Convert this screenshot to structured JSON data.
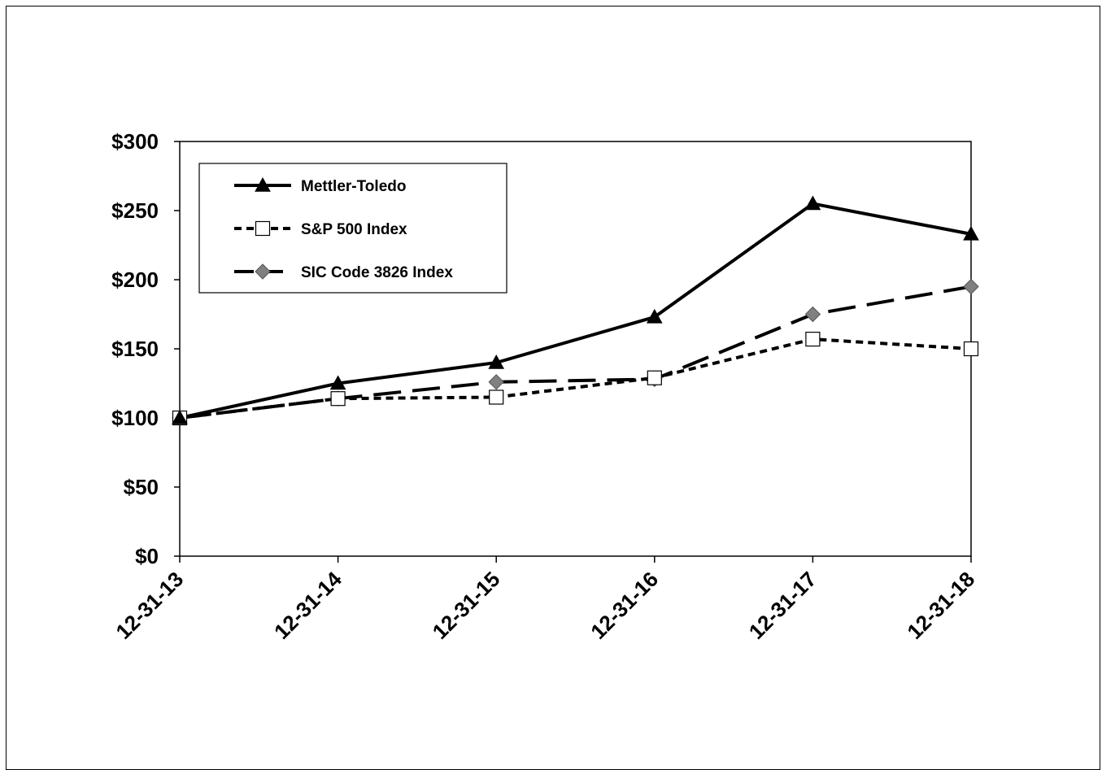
{
  "chart_data": {
    "type": "line",
    "title": "",
    "xlabel": "",
    "ylabel": "",
    "categories": [
      "12-31-13",
      "12-31-14",
      "12-31-15",
      "12-31-16",
      "12-31-17",
      "12-31-18"
    ],
    "ylim": [
      0,
      300
    ],
    "yticks": [
      0,
      50,
      100,
      150,
      200,
      250,
      300
    ],
    "ytick_labels": [
      "$0",
      "$50",
      "$100",
      "$150",
      "$200",
      "$250",
      "$300"
    ],
    "grid": false,
    "legend_position": "top-left",
    "series": [
      {
        "name": "Mettler-Toledo",
        "values": [
          100,
          125,
          140,
          173,
          255,
          233
        ],
        "marker": "triangle",
        "line_style": "solid",
        "color": "#000000",
        "marker_color": "#000000"
      },
      {
        "name": "S&P 500 Index",
        "values": [
          100,
          114,
          115,
          129,
          157,
          150
        ],
        "marker": "square-open",
        "line_style": "dotted",
        "color": "#000000",
        "marker_color": "#ffffff"
      },
      {
        "name": "SIC Code 3826 Index",
        "values": [
          100,
          114,
          126,
          128,
          175,
          195
        ],
        "marker": "diamond",
        "line_style": "long-dash",
        "color": "#000000",
        "marker_color": "#808080"
      }
    ]
  }
}
